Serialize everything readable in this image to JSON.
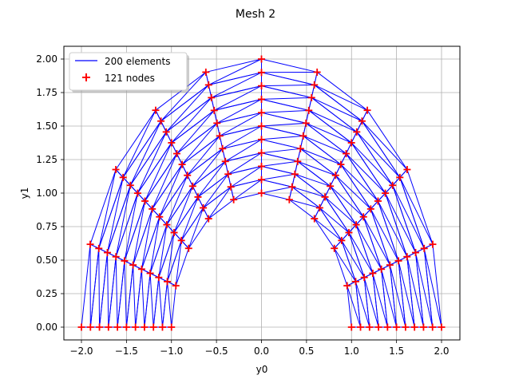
{
  "figure": {
    "title": "Mesh 2",
    "xlabel": "y0",
    "ylabel": "y1",
    "legend": [
      {
        "label": "200 elements",
        "marker": "line",
        "color": "#0000ff"
      },
      {
        "label": "121 nodes",
        "marker": "plus",
        "color": "#ff0000"
      }
    ]
  },
  "chart_data": {
    "type": "scatter",
    "title": "Mesh 2",
    "xlabel": "y0",
    "ylabel": "y1",
    "xlim": [
      -2.2,
      2.2
    ],
    "ylim": [
      -0.1,
      2.1
    ],
    "xticks": [
      -2.0,
      -1.5,
      -1.0,
      -0.5,
      0.0,
      0.5,
      1.0,
      1.5,
      2.0
    ],
    "xtick_labels": [
      "−2.0",
      "−1.5",
      "−1.0",
      "−0.5",
      "0.0",
      "0.5",
      "1.0",
      "1.5",
      "2.0"
    ],
    "yticks": [
      0.0,
      0.25,
      0.5,
      0.75,
      1.0,
      1.25,
      1.5,
      1.75,
      2.0
    ],
    "ytick_labels": [
      "0.00",
      "0.25",
      "0.50",
      "0.75",
      "1.00",
      "1.25",
      "1.50",
      "1.75",
      "2.00"
    ],
    "grid": true,
    "legend_position": "upper left",
    "mesh": {
      "description": "Half-annulus triangular mesh, inner radius 1, outer radius 2",
      "inner_radius": 1.0,
      "outer_radius": 2.0,
      "angular_divisions": 10,
      "radial_divisions": 10,
      "angle_start_deg": 180,
      "angle_end_deg": 0,
      "n_nodes": 121,
      "n_elements": 200
    },
    "series": [
      {
        "name": "200 elements",
        "kind": "triangle-edges",
        "color": "#0000ff"
      },
      {
        "name": "121 nodes",
        "kind": "points",
        "marker": "+",
        "color": "#ff0000"
      }
    ]
  }
}
